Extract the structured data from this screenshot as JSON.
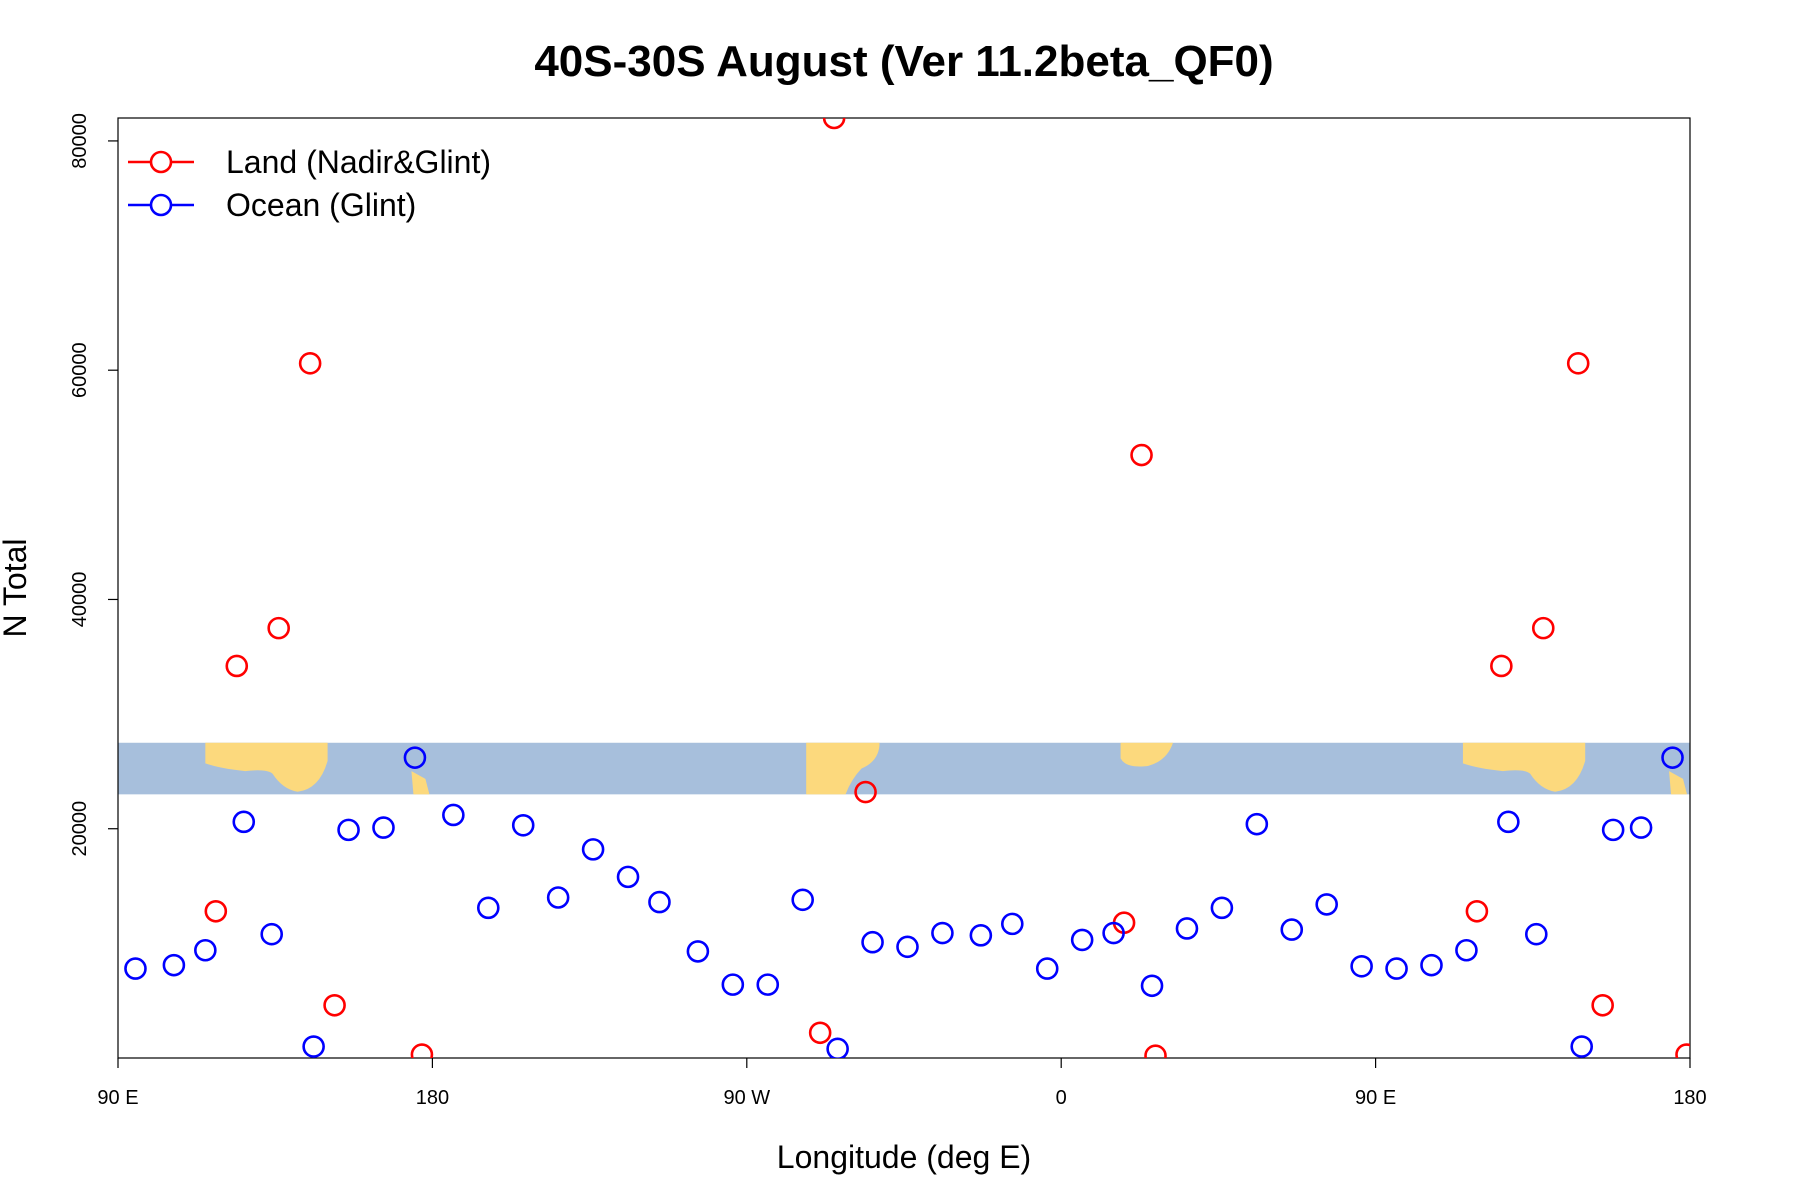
{
  "chart_data": {
    "type": "scatter",
    "title": "40S-30S August (Ver 11.2beta_QF0)",
    "xlabel": "Longitude (deg E)",
    "ylabel": "N Total",
    "xlim": [
      90,
      540
    ],
    "ylim": [
      0,
      82000
    ],
    "x_ticks": [
      {
        "value": 90,
        "label": "90 E"
      },
      {
        "value": 180,
        "label": "180"
      },
      {
        "value": 270,
        "label": "90 W"
      },
      {
        "value": 360,
        "label": "0"
      },
      {
        "value": 450,
        "label": "90 E"
      },
      {
        "value": 540,
        "label": "180"
      }
    ],
    "y_ticks": [
      {
        "value": 20000,
        "label": "20000"
      },
      {
        "value": 40000,
        "label": "40000"
      },
      {
        "value": 60000,
        "label": "60000"
      },
      {
        "value": 80000,
        "label": "80000"
      }
    ],
    "grid": false,
    "legend_position": "top-left",
    "map_strip": {
      "y_range": [
        23000,
        27500
      ],
      "ocean_color": "#a7bfdc",
      "land_color": "#fcd97d"
    },
    "series": [
      {
        "name": "Land (Nadir&Glint)",
        "color": "#ff0000",
        "points": [
          [
            118,
            12800
          ],
          [
            124,
            34200
          ],
          [
            136,
            37500
          ],
          [
            145,
            60600
          ],
          [
            152,
            4600
          ],
          [
            177,
            300
          ],
          [
            295,
            82000
          ],
          [
            291,
            2200
          ],
          [
            304,
            23200
          ],
          [
            378,
            11800
          ],
          [
            383,
            52600
          ],
          [
            387,
            200
          ],
          [
            479,
            12800
          ],
          [
            486,
            34200
          ],
          [
            498,
            37500
          ],
          [
            508,
            60600
          ],
          [
            515,
            4600
          ],
          [
            539,
            300
          ]
        ]
      },
      {
        "name": "Ocean (Glint)",
        "color": "#0000ff",
        "points": [
          [
            95,
            7800
          ],
          [
            106,
            8100
          ],
          [
            115,
            9400
          ],
          [
            126,
            20600
          ],
          [
            134,
            10800
          ],
          [
            146,
            1000
          ],
          [
            156,
            19900
          ],
          [
            166,
            20100
          ],
          [
            175,
            26200
          ],
          [
            186,
            21200
          ],
          [
            196,
            13100
          ],
          [
            206,
            20300
          ],
          [
            216,
            14000
          ],
          [
            226,
            18200
          ],
          [
            236,
            15800
          ],
          [
            245,
            13600
          ],
          [
            256,
            9300
          ],
          [
            266,
            6400
          ],
          [
            276,
            6400
          ],
          [
            286,
            13800
          ],
          [
            296,
            800
          ],
          [
            306,
            10100
          ],
          [
            316,
            9700
          ],
          [
            326,
            10900
          ],
          [
            337,
            10700
          ],
          [
            346,
            11700
          ],
          [
            356,
            7800
          ],
          [
            366,
            10300
          ],
          [
            375,
            10900
          ],
          [
            386,
            6300
          ],
          [
            396,
            11300
          ],
          [
            406,
            13100
          ],
          [
            416,
            20400
          ],
          [
            426,
            11200
          ],
          [
            436,
            13400
          ],
          [
            446,
            8000
          ],
          [
            456,
            7800
          ],
          [
            466,
            8100
          ],
          [
            476,
            9400
          ],
          [
            488,
            20600
          ],
          [
            496,
            10800
          ],
          [
            509,
            1000
          ],
          [
            518,
            19900
          ],
          [
            526,
            20100
          ],
          [
            535,
            26200
          ]
        ]
      }
    ]
  }
}
